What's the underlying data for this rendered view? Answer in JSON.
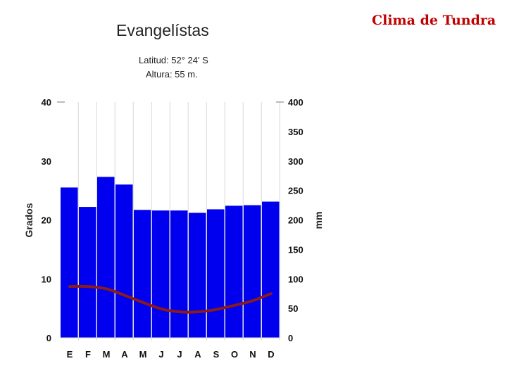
{
  "slide": {
    "title": "Clima de Tundra"
  },
  "chart_data": {
    "type": "bar",
    "title": "Evangelístas",
    "subtitle_lines": [
      "Latitud: 52° 24' S",
      "Altura: 55 m."
    ],
    "categories": [
      "E",
      "F",
      "M",
      "A",
      "M",
      "J",
      "J",
      "A",
      "S",
      "O",
      "N",
      "D"
    ],
    "series": [
      {
        "name": "",
        "kind": "bar",
        "axis": "right",
        "color": "#0000ee",
        "values": [
          255,
          222,
          273,
          260,
          217,
          216,
          216,
          212,
          218,
          224,
          225,
          231
        ]
      },
      {
        "name": "",
        "kind": "line",
        "axis": "left",
        "color": "#8b1a1a",
        "values": [
          8.7,
          8.7,
          8.3,
          7.2,
          6.0,
          4.9,
          4.4,
          4.4,
          4.8,
          5.5,
          6.3,
          7.5
        ]
      }
    ],
    "y_left": {
      "label": "Grados",
      "ylim": [
        0,
        40
      ],
      "ticks": [
        0,
        10,
        20,
        30,
        40
      ]
    },
    "y_right": {
      "label": "mm",
      "ylim": [
        0,
        400
      ],
      "ticks": [
        0,
        50,
        100,
        150,
        200,
        250,
        300,
        350,
        400
      ]
    },
    "grid": true
  }
}
